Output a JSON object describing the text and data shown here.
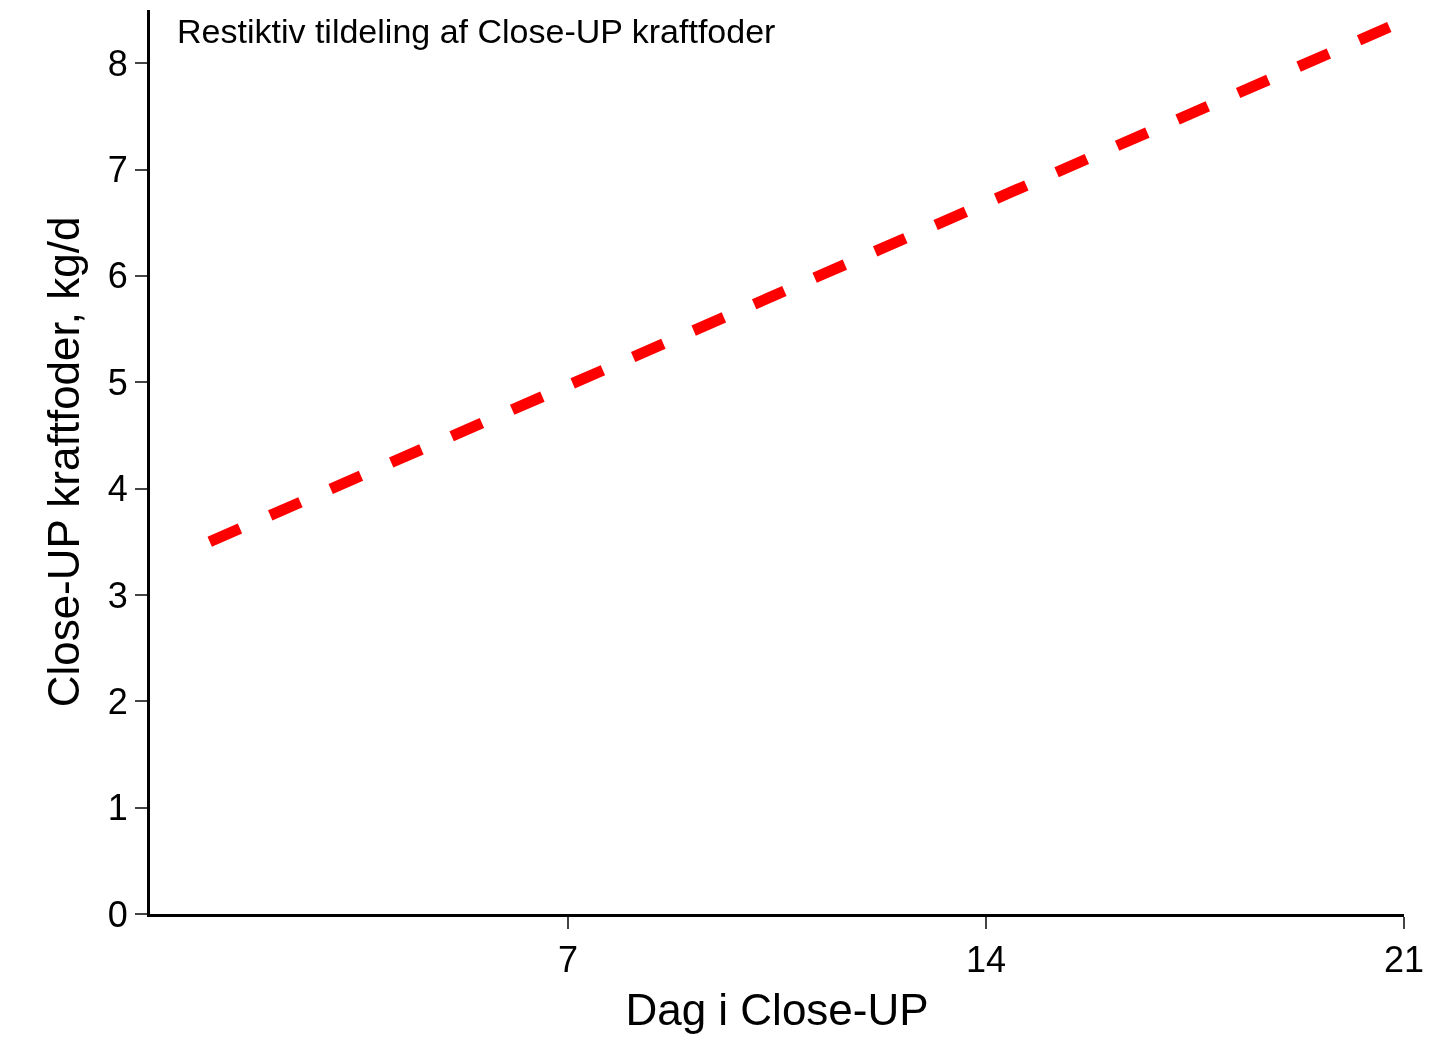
{
  "chart_data": {
    "type": "line",
    "title": "Restiktiv tildeling af Close-UP kraftfoder",
    "xlabel": "Dag i Close-UP",
    "ylabel": "Close-UP kraftfoder, kg/d",
    "x": [
      1,
      21
    ],
    "series": [
      {
        "color": "#ff0000",
        "values": [
          3.5,
          8.4
        ]
      }
    ],
    "xlim": [
      0,
      21
    ],
    "xticks": [
      7,
      14,
      21
    ],
    "ylim": [
      0,
      8.5
    ],
    "yticks": [
      0,
      1,
      2,
      3,
      4,
      5,
      6,
      7,
      8
    ],
    "line_style": "dashed",
    "marker": "none",
    "legend": false
  }
}
